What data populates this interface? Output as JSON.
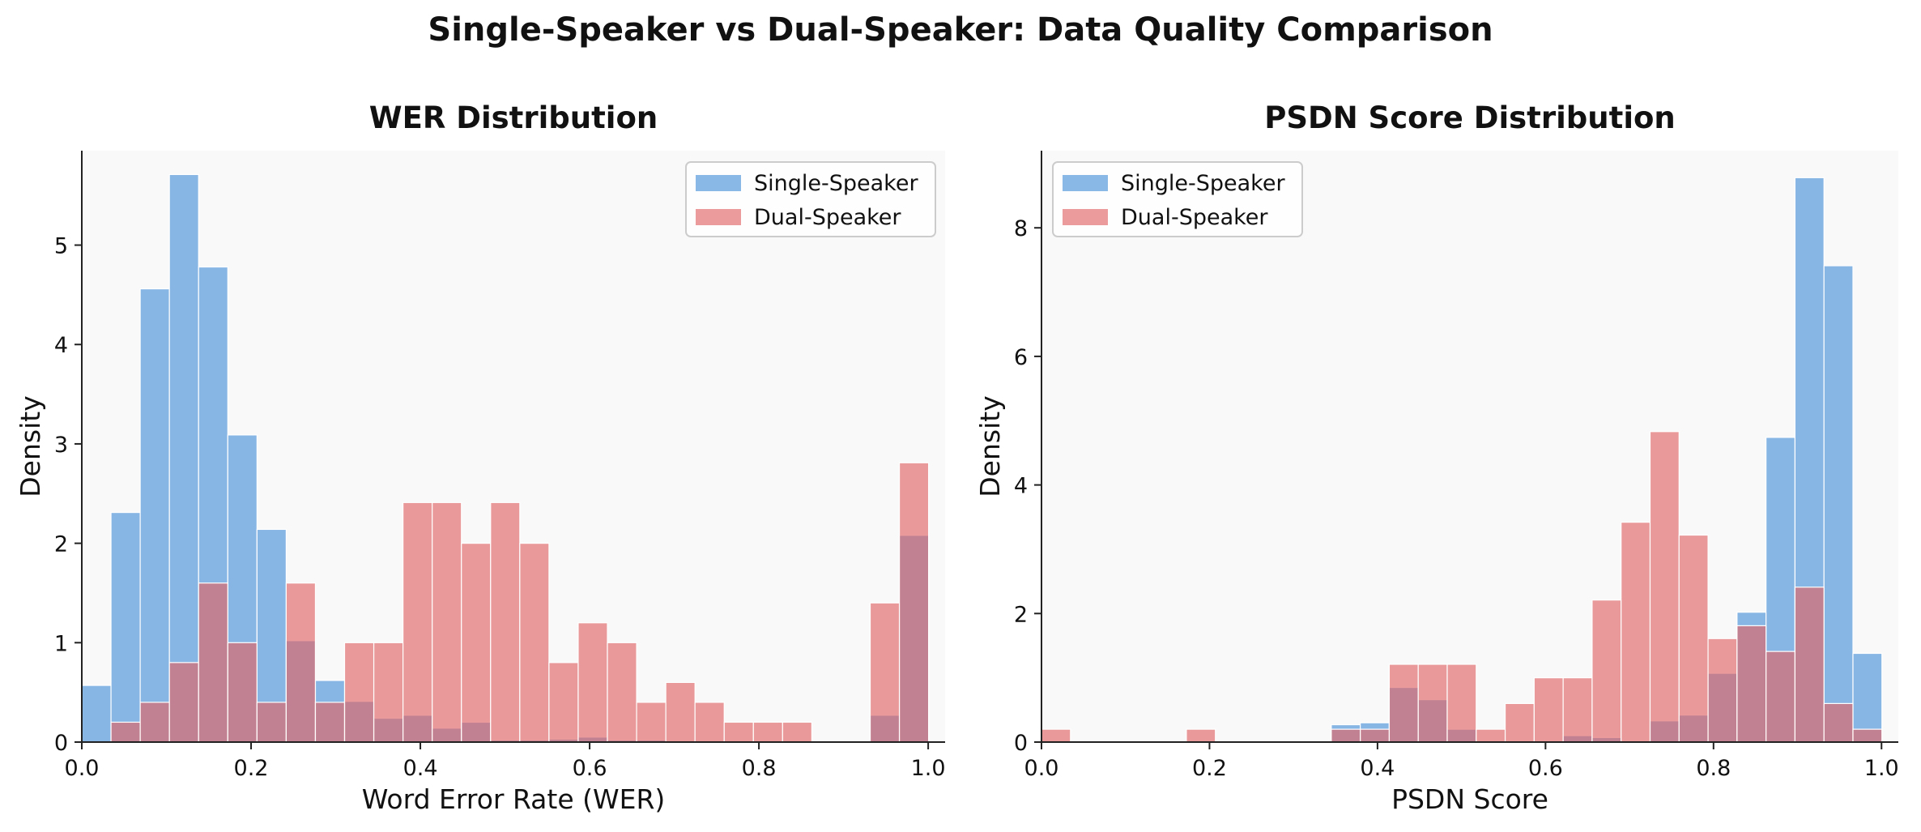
{
  "figure": {
    "title": "Single-Speaker vs Dual-Speaker: Data Quality Comparison"
  },
  "colors": {
    "single": "#4a90d9",
    "dual": "#e06666",
    "plot_bg": "#f9f9f9",
    "edge": "#ffffff"
  },
  "chart_data": [
    {
      "type": "histogram",
      "title": "WER Distribution",
      "xlabel": "Word Error Rate (WER)",
      "ylabel": "Density",
      "xlim": [
        0.0,
        1.02
      ],
      "ylim": [
        0,
        5.95
      ],
      "xticks": [
        0.0,
        0.2,
        0.4,
        0.6,
        0.8,
        1.0
      ],
      "xtick_labels": [
        "0.0",
        "0.2",
        "0.4",
        "0.6",
        "0.8",
        "1.0"
      ],
      "yticks": [
        0,
        1,
        2,
        3,
        4,
        5
      ],
      "ytick_labels": [
        "0",
        "1",
        "2",
        "3",
        "4",
        "5"
      ],
      "bin_start": 0.0,
      "bin_width": 0.0345,
      "legend": "top-right",
      "grid": false,
      "series": [
        {
          "name": "Single-Speaker",
          "values": [
            0.57,
            2.31,
            4.56,
            5.71,
            4.78,
            3.09,
            2.14,
            1.02,
            0.62,
            0.41,
            0.24,
            0.27,
            0.14,
            0.2,
            0.02,
            0.02,
            0.03,
            0.05,
            0.02,
            0.02,
            0.0,
            0.0,
            0.0,
            0.0,
            0.0,
            0.0,
            0.0,
            0.27,
            2.08
          ]
        },
        {
          "name": "Dual-Speaker",
          "values": [
            0.0,
            0.2,
            0.4,
            0.8,
            1.6,
            1.0,
            0.4,
            1.6,
            0.4,
            1.0,
            1.0,
            2.41,
            2.41,
            2.0,
            2.41,
            2.0,
            0.8,
            1.2,
            1.0,
            0.4,
            0.6,
            0.4,
            0.2,
            0.2,
            0.2,
            0.0,
            0.0,
            1.4,
            2.81
          ]
        }
      ]
    },
    {
      "type": "histogram",
      "title": "PSDN Score Distribution",
      "xlabel": "PSDN Score",
      "ylabel": "Density",
      "xlim": [
        0.0,
        1.02
      ],
      "ylim": [
        0,
        9.2
      ],
      "xticks": [
        0.0,
        0.2,
        0.4,
        0.6,
        0.8,
        1.0
      ],
      "xtick_labels": [
        "0.0",
        "0.2",
        "0.4",
        "0.6",
        "0.8",
        "1.0"
      ],
      "yticks": [
        0,
        2,
        4,
        6,
        8
      ],
      "ytick_labels": [
        "0",
        "2",
        "4",
        "6",
        "8"
      ],
      "bin_start": 0.0,
      "bin_width": 0.0345,
      "legend": "top-left",
      "grid": false,
      "series": [
        {
          "name": "Single-Speaker",
          "values": [
            0.0,
            0.0,
            0.0,
            0.0,
            0.0,
            0.0,
            0.0,
            0.0,
            0.0,
            0.0,
            0.27,
            0.3,
            0.85,
            0.66,
            0.2,
            0.02,
            0.02,
            0.02,
            0.1,
            0.07,
            0.02,
            0.33,
            0.42,
            1.07,
            2.02,
            4.74,
            8.78,
            7.41,
            1.38
          ]
        },
        {
          "name": "Dual-Speaker",
          "values": [
            0.2,
            0.0,
            0.0,
            0.0,
            0.0,
            0.2,
            0.0,
            0.0,
            0.0,
            0.0,
            0.2,
            0.2,
            1.21,
            1.21,
            1.21,
            0.2,
            0.6,
            1.0,
            1.0,
            2.21,
            3.42,
            4.83,
            3.22,
            1.61,
            1.81,
            1.41,
            2.41,
            0.6,
            0.2
          ]
        }
      ]
    }
  ]
}
